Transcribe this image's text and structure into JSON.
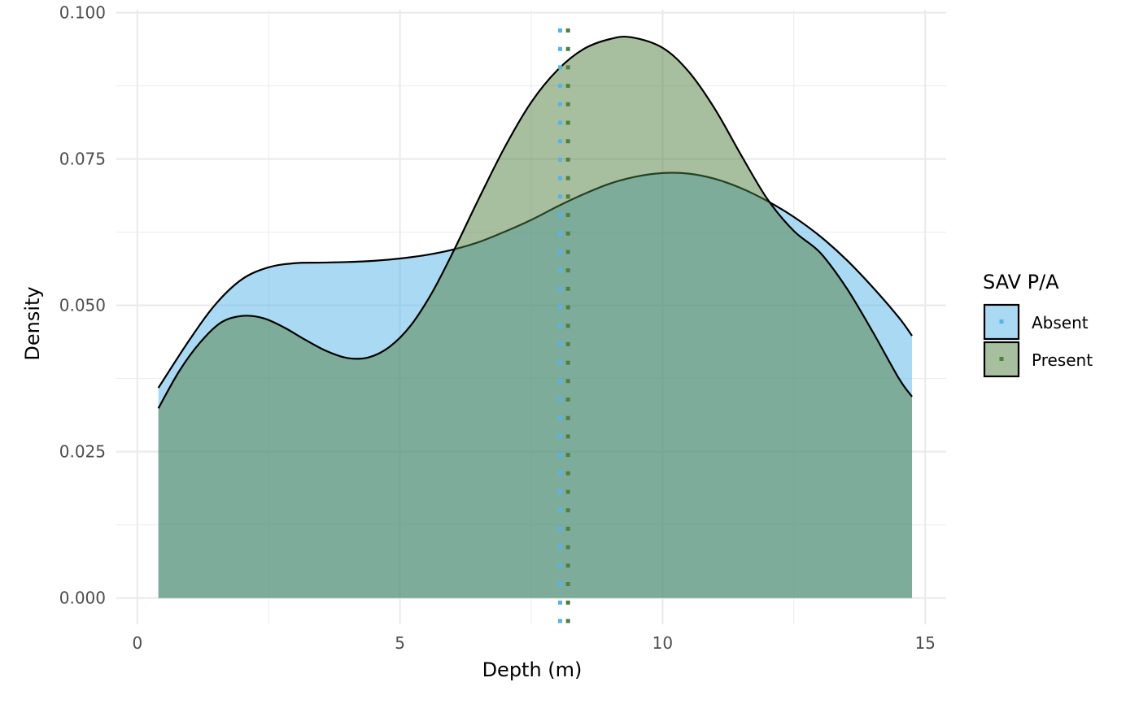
{
  "chart_data": {
    "type": "area",
    "subtype": "density",
    "xlabel": "Depth (m)",
    "ylabel": "Density",
    "xlim": [
      -0.4,
      15.4
    ],
    "ylim": [
      -0.0045,
      0.1005
    ],
    "x_ticks": [
      0,
      5,
      10,
      15
    ],
    "x_tick_labels": [
      "0",
      "5",
      "10",
      "15"
    ],
    "y_ticks": [
      0,
      0.025,
      0.05,
      0.075,
      0.1
    ],
    "y_tick_labels": [
      "0.000",
      "0.025",
      "0.050",
      "0.075",
      "0.100"
    ],
    "grid": true,
    "legend": {
      "title": "SAV P/A",
      "position": "right"
    },
    "series": [
      {
        "name": "Absent",
        "fill": "#56b4e9",
        "fill_opacity": 0.5,
        "mean_line": 8.05,
        "x": [
          0.4,
          1.0,
          1.5,
          2.0,
          2.5,
          3.0,
          3.5,
          4.0,
          4.5,
          5.0,
          5.5,
          6.0,
          6.5,
          7.0,
          7.5,
          8.0,
          8.5,
          9.0,
          9.5,
          10.0,
          10.5,
          11.0,
          11.5,
          12.0,
          12.5,
          13.0,
          13.5,
          14.0,
          14.5,
          14.75
        ],
        "y": [
          0.0359,
          0.0442,
          0.0503,
          0.0545,
          0.0565,
          0.0572,
          0.0573,
          0.0574,
          0.0576,
          0.058,
          0.0586,
          0.0595,
          0.0608,
          0.0626,
          0.0646,
          0.0669,
          0.069,
          0.0708,
          0.072,
          0.0726,
          0.0725,
          0.0716,
          0.07,
          0.0678,
          0.0651,
          0.0618,
          0.0578,
          0.0531,
          0.0479,
          0.0448
        ]
      },
      {
        "name": "Present",
        "fill": "#4f7f3f",
        "fill_opacity": 0.5,
        "mean_line": 8.2,
        "x": [
          0.4,
          0.8,
          1.2,
          1.6,
          2.0,
          2.4,
          2.8,
          3.2,
          3.6,
          4.0,
          4.4,
          4.8,
          5.2,
          5.6,
          6.0,
          6.5,
          7.0,
          7.5,
          8.0,
          8.5,
          9.0,
          9.4,
          10.0,
          10.5,
          11.0,
          11.5,
          12.0,
          12.5,
          13.0,
          13.5,
          14.0,
          14.5,
          14.75
        ],
        "y": [
          0.0324,
          0.0388,
          0.0437,
          0.0471,
          0.0482,
          0.0478,
          0.0462,
          0.0441,
          0.0422,
          0.041,
          0.0411,
          0.0429,
          0.0465,
          0.052,
          0.0589,
          0.0682,
          0.0771,
          0.0847,
          0.0902,
          0.0938,
          0.0955,
          0.0958,
          0.094,
          0.0899,
          0.0835,
          0.0756,
          0.0681,
          0.0627,
          0.059,
          0.053,
          0.0455,
          0.0375,
          0.0344
        ]
      }
    ]
  }
}
